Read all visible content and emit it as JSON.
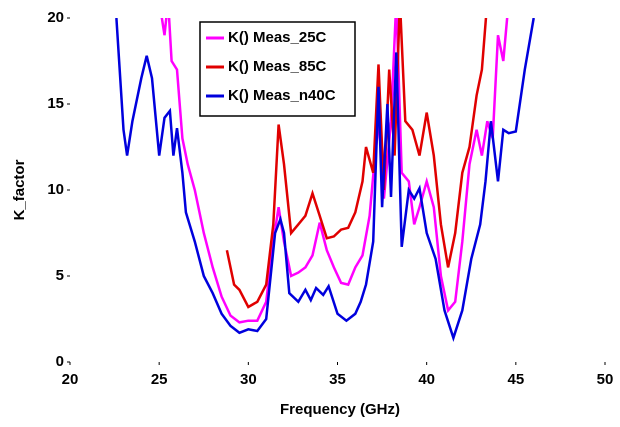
{
  "chart_data": {
    "type": "line",
    "xlabel": "Frequency (GHz)",
    "ylabel": "K_factor",
    "xlim": [
      20,
      50
    ],
    "xticks": [
      20,
      25,
      30,
      35,
      40,
      45,
      50
    ],
    "ylim": [
      0,
      20
    ],
    "yticks": [
      0,
      5,
      10,
      15,
      20
    ],
    "series": [
      {
        "name": "K() Meas_25C",
        "color": "#ff00ff",
        "x": [
          25,
          25.3,
          25.5,
          25.7,
          26,
          26.3,
          26.6,
          27,
          27.5,
          28,
          28.5,
          29,
          29.5,
          30,
          30.5,
          31,
          31.4,
          31.7,
          32,
          32.4,
          32.8,
          33.2,
          33.6,
          34,
          34.4,
          34.8,
          35.2,
          35.6,
          36,
          36.4,
          36.8,
          37.1,
          37.4,
          37.6,
          38,
          38.3,
          38.6,
          39,
          39.3,
          39.6,
          40,
          40.4,
          40.8,
          41.2,
          41.6,
          42,
          42.4,
          42.8,
          43.1,
          43.4,
          43.7,
          44,
          44.3,
          44.6
        ],
        "values": [
          21,
          19,
          21,
          17.5,
          17,
          13,
          11.5,
          10,
          7.5,
          5.5,
          3.8,
          2.7,
          2.3,
          2.4,
          2.4,
          3.5,
          7,
          9,
          7,
          5,
          5.2,
          5.5,
          6.2,
          8.1,
          6.5,
          5.5,
          4.6,
          4.5,
          5.5,
          6.2,
          8.5,
          12,
          14.5,
          9.5,
          14,
          21,
          11,
          10.5,
          8,
          9,
          10.5,
          9,
          5,
          3,
          3.5,
          7,
          11.5,
          13.5,
          12,
          14,
          13,
          19,
          17.5,
          21
        ]
      },
      {
        "name": "K() Meas_85C",
        "color": "#e00000",
        "x": [
          28.8,
          29.2,
          29.5,
          30,
          30.5,
          31,
          31.4,
          31.7,
          32,
          32.4,
          32.8,
          33.2,
          33.6,
          34,
          34.4,
          34.8,
          35.2,
          35.6,
          36,
          36.4,
          36.6,
          37,
          37.3,
          37.6,
          37.9,
          38.2,
          38.5,
          38.8,
          39.2,
          39.6,
          40,
          40.4,
          40.8,
          41.2,
          41.6,
          42,
          42.4,
          42.8,
          43.1,
          43.4
        ],
        "values": [
          6.5,
          4.5,
          4.2,
          3.2,
          3.5,
          4.5,
          8,
          13.8,
          11.5,
          7.5,
          8,
          8.5,
          9.8,
          8.5,
          7.2,
          7.3,
          7.7,
          7.8,
          8.7,
          10.5,
          12.5,
          11,
          17.3,
          10,
          17,
          12,
          21,
          14,
          13.5,
          12,
          14.5,
          12,
          8,
          5.5,
          7.5,
          11,
          12.5,
          15.5,
          17,
          21
        ]
      },
      {
        "name": "K() Meas_n40C",
        "color": "#0000dd",
        "x": [
          22.6,
          23,
          23.2,
          23.5,
          24,
          24.3,
          24.6,
          25,
          25.3,
          25.6,
          25.8,
          26,
          26.3,
          26.5,
          27,
          27.5,
          28,
          28.5,
          29,
          29.5,
          30,
          30.5,
          31,
          31.5,
          31.8,
          32,
          32.3,
          32.8,
          33.2,
          33.5,
          33.8,
          34.2,
          34.5,
          35,
          35.5,
          36,
          36.3,
          36.6,
          37,
          37.3,
          37.5,
          37.8,
          38,
          38.3,
          38.6,
          39,
          39.3,
          39.6,
          40,
          40.5,
          41,
          41.5,
          42,
          42.5,
          43,
          43.3,
          43.6,
          44,
          44.3,
          44.6,
          45,
          45.5,
          46
        ],
        "values": [
          20,
          13.5,
          12,
          14,
          16.5,
          17.8,
          16.5,
          12,
          14.2,
          14.6,
          12,
          13.6,
          11,
          8.7,
          7,
          5,
          4,
          2.8,
          2.1,
          1.7,
          1.9,
          1.8,
          2.5,
          7.5,
          8.3,
          7.5,
          4,
          3.5,
          4.2,
          3.6,
          4.3,
          3.9,
          4.4,
          2.8,
          2.4,
          2.8,
          3.5,
          4.5,
          7,
          16,
          9,
          15,
          9.6,
          18,
          6.7,
          10,
          9.5,
          10.1,
          7.5,
          6,
          3,
          1.4,
          3,
          6,
          8,
          10.5,
          14,
          10.5,
          13.5,
          13.3,
          13.4,
          17,
          20
        ]
      }
    ]
  }
}
